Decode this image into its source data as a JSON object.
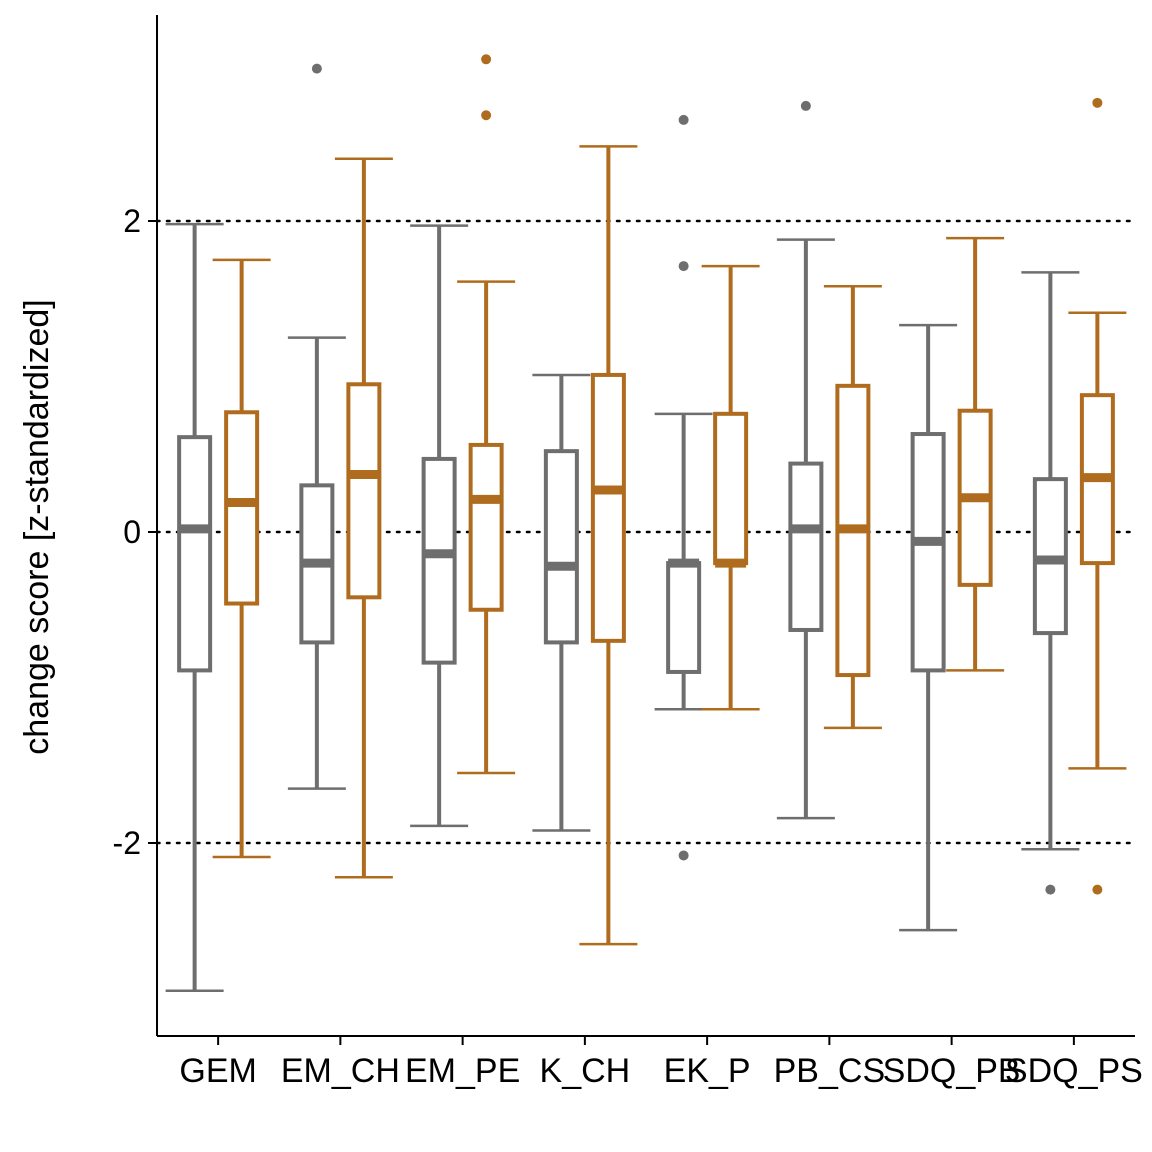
{
  "chart_data": {
    "type": "boxplot",
    "ylabel": "change score [z-standardized]",
    "xlabel": "",
    "ylim": [
      -3.25,
      3.35
    ],
    "yticks": [
      -2,
      0,
      2
    ],
    "ytick_labels": [
      "-2",
      "0",
      "2"
    ],
    "reference_lines": [
      -2,
      0,
      2
    ],
    "grid": false,
    "colors": {
      "group_a": "#6e6e6e",
      "group_b": "#b06c1e"
    },
    "categories": [
      "GEM",
      "EM_CH",
      "EM_PE",
      "K_CH",
      "EK_P",
      "PB_CS",
      "SDQ_PB",
      "SDQ_PS"
    ],
    "category_labels": [
      "GEM",
      "EM_CH",
      "EM_PE",
      "K_CH",
      "EK_P",
      "PB_CS",
      "SDQ_PB",
      "SDQ_PS"
    ],
    "series": [
      {
        "color": "#6e6e6e",
        "boxes": [
          {
            "whisker_low": -2.95,
            "q1": -0.89,
            "median": 0.02,
            "q3": 0.61,
            "whisker_high": 1.98,
            "outliers": []
          },
          {
            "whisker_low": -1.65,
            "q1": -0.71,
            "median": -0.2,
            "q3": 0.3,
            "whisker_high": 1.25,
            "outliers": [
              2.98
            ]
          },
          {
            "whisker_low": -1.89,
            "q1": -0.84,
            "median": -0.14,
            "q3": 0.47,
            "whisker_high": 1.97,
            "outliers": []
          },
          {
            "whisker_low": -1.92,
            "q1": -0.71,
            "median": -0.22,
            "q3": 0.52,
            "whisker_high": 1.01,
            "outliers": []
          },
          {
            "whisker_low": -1.14,
            "q1": -0.9,
            "median": -0.2,
            "q3": -0.2,
            "whisker_high": 0.76,
            "outliers": [
              2.65,
              1.71,
              -2.08
            ]
          },
          {
            "whisker_low": -1.84,
            "q1": -0.63,
            "median": 0.02,
            "q3": 0.44,
            "whisker_high": 1.88,
            "outliers": [
              2.74
            ]
          },
          {
            "whisker_low": -2.56,
            "q1": -0.89,
            "median": -0.06,
            "q3": 0.63,
            "whisker_high": 1.33,
            "outliers": []
          },
          {
            "whisker_low": -2.04,
            "q1": -0.65,
            "median": -0.18,
            "q3": 0.34,
            "whisker_high": 1.67,
            "outliers": [
              -2.3
            ]
          }
        ]
      },
      {
        "color": "#b06c1e",
        "boxes": [
          {
            "whisker_low": -2.09,
            "q1": -0.46,
            "median": 0.19,
            "q3": 0.77,
            "whisker_high": 1.75,
            "outliers": []
          },
          {
            "whisker_low": -2.22,
            "q1": -0.42,
            "median": 0.37,
            "q3": 0.95,
            "whisker_high": 2.4,
            "outliers": []
          },
          {
            "whisker_low": -1.55,
            "q1": -0.5,
            "median": 0.21,
            "q3": 0.56,
            "whisker_high": 1.61,
            "outliers": [
              3.04,
              2.68
            ]
          },
          {
            "whisker_low": -2.65,
            "q1": -0.7,
            "median": 0.27,
            "q3": 1.01,
            "whisker_high": 2.48,
            "outliers": []
          },
          {
            "whisker_low": -1.14,
            "q1": -0.2,
            "median": -0.2,
            "q3": 0.76,
            "whisker_high": 1.71,
            "outliers": []
          },
          {
            "whisker_low": -1.26,
            "q1": -0.92,
            "median": 0.02,
            "q3": 0.94,
            "whisker_high": 1.58,
            "outliers": []
          },
          {
            "whisker_low": -0.89,
            "q1": -0.34,
            "median": 0.22,
            "q3": 0.78,
            "whisker_high": 1.89,
            "outliers": []
          },
          {
            "whisker_low": -1.52,
            "q1": -0.2,
            "median": 0.35,
            "q3": 0.88,
            "whisker_high": 1.41,
            "outliers": [
              2.76,
              -2.3
            ]
          }
        ]
      }
    ]
  }
}
